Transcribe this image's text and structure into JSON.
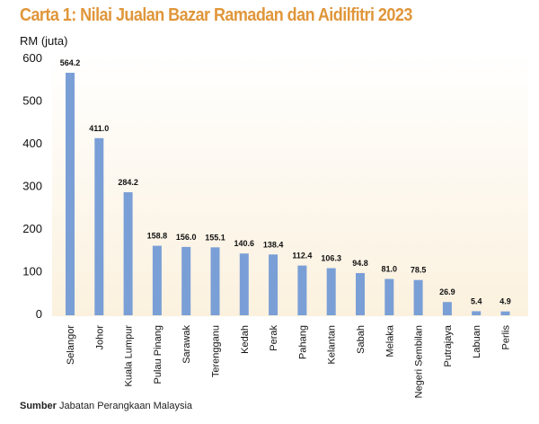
{
  "chart_data": {
    "type": "bar",
    "title": "Carta 1: Nilai Jualan Bazar Ramadan dan Aidilfitri 2023",
    "ylabel": "RM (juta)",
    "xlabel": "",
    "ylim": [
      0,
      600
    ],
    "yticks": [
      0,
      100,
      200,
      300,
      400,
      500,
      600
    ],
    "grid": false,
    "categories": [
      "Selangor",
      "Johor",
      "Kuala Lumpur",
      "Pulau Pinang",
      "Sarawak",
      "Terengganu",
      "Kedah",
      "Perak",
      "Pahang",
      "Kelantan",
      "Sabah",
      "Melaka",
      "Negeri Sembilan",
      "Putrajaya",
      "Labuan",
      "Perlis"
    ],
    "values": [
      564.2,
      411.0,
      284.2,
      158.8,
      156.0,
      155.1,
      140.6,
      138.4,
      112.4,
      106.3,
      94.8,
      81.0,
      78.5,
      26.9,
      5.4,
      4.9
    ],
    "value_labels": [
      "564.2",
      "411.0",
      "284.2",
      "158.8",
      "156.0",
      "155.1",
      "140.6",
      "138.4",
      "112.4",
      "106.3",
      "94.8",
      "81.0",
      "78.5",
      "26.9",
      "5.4",
      "4.9"
    ],
    "bar_color": "#7a9fd6",
    "title_color": "#e0963a",
    "background_color": "#fbf1de"
  },
  "source": {
    "label": "Sumber",
    "text": "Jabatan Perangkaan Malaysia"
  }
}
